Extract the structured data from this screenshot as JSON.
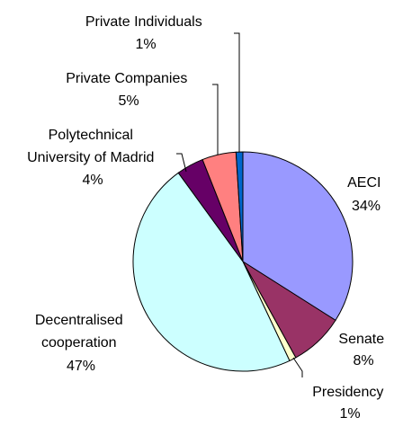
{
  "chart_data": {
    "type": "pie",
    "title": "",
    "slices": [
      {
        "label": "AECI",
        "value": 34,
        "display": "34%",
        "color": "#9999ff"
      },
      {
        "label": "Senate",
        "value": 8,
        "display": "8%",
        "color": "#993366"
      },
      {
        "label": "Presidency",
        "value": 1,
        "display": "1%",
        "color": "#ffffcc"
      },
      {
        "label": "Decentralised cooperation",
        "value": 47,
        "display": "47%",
        "color": "#ccffff"
      },
      {
        "label": "Polytechnical University of Madrid",
        "value": 4,
        "display": "4%",
        "color": "#660066"
      },
      {
        "label": "Private Companies",
        "value": 5,
        "display": "5%",
        "color": "#ff8080"
      },
      {
        "label": "Private Individuals",
        "value": 1,
        "display": "1%",
        "color": "#0066cc"
      }
    ]
  }
}
